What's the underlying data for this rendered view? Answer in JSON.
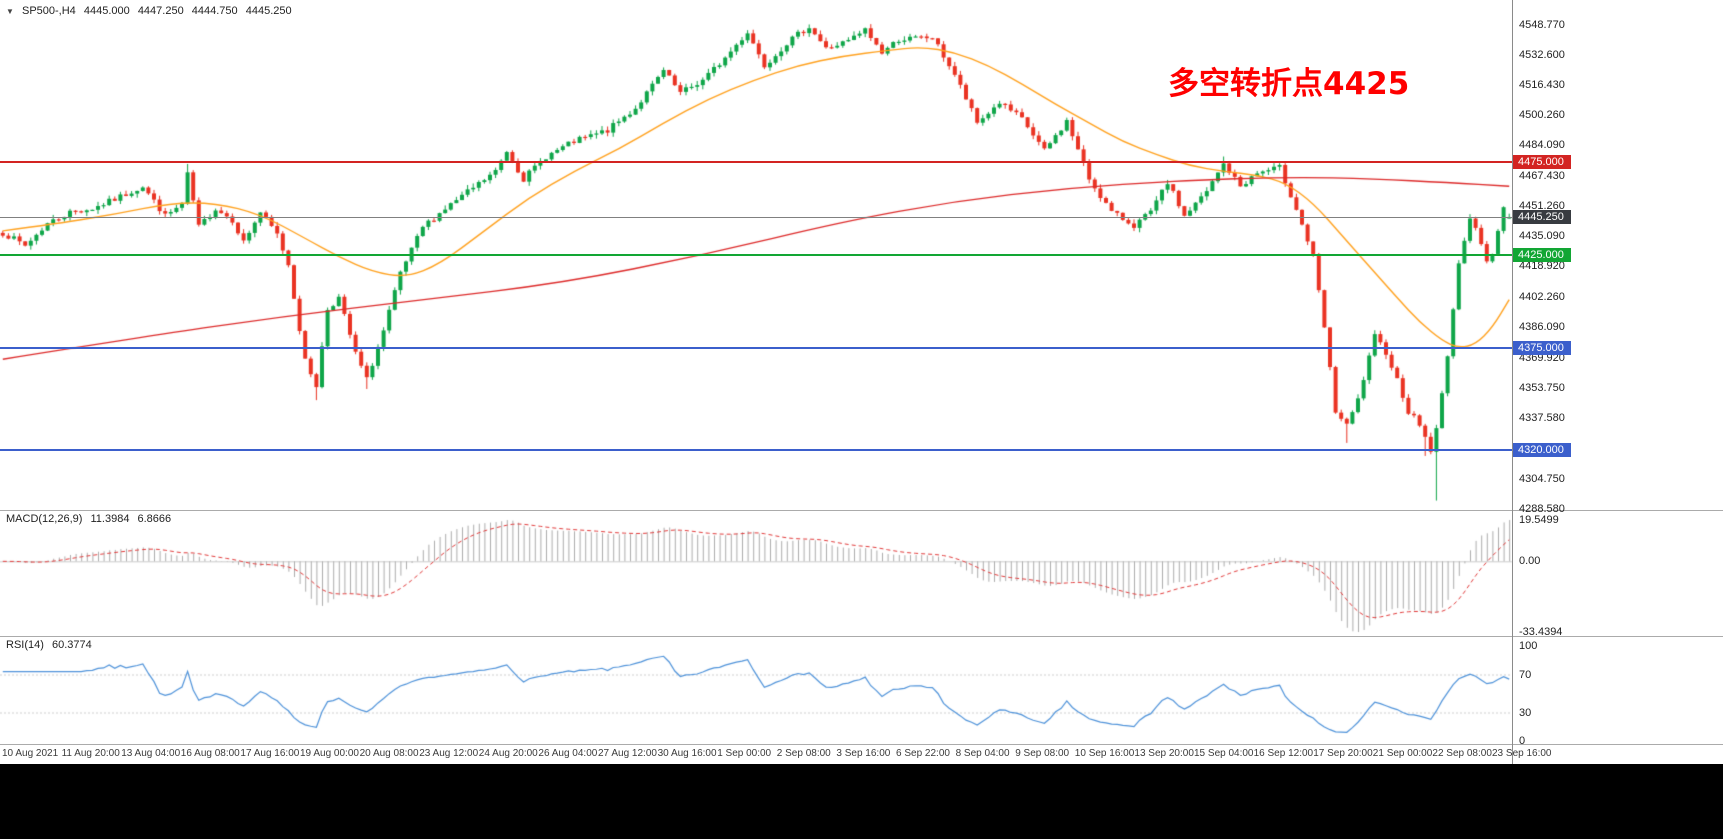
{
  "chart_header": {
    "expander_icon": "▼",
    "symbol_period": "SP500-,H4",
    "open": "4445.000",
    "high": "4447.250",
    "low": "4444.750",
    "close": "4445.250"
  },
  "annotation": {
    "text": "多空转折点4425",
    "color": "#FF0000"
  },
  "price_scale": {
    "labels": [
      "4548.770",
      "4532.600",
      "4516.430",
      "4500.260",
      "4484.090",
      "4467.430",
      "4451.260",
      "4435.090",
      "4418.920",
      "4402.260",
      "4386.090",
      "4369.920",
      "4353.750",
      "4337.580",
      "4304.750",
      "4288.580"
    ]
  },
  "current_price": {
    "label": "4445.250",
    "value": 4445.25,
    "badge_bg": "#383B41",
    "line_color": "#808080"
  },
  "levels": [
    {
      "label": "4475.000",
      "price": 4475,
      "color": "#D32422"
    },
    {
      "label": "4425.000",
      "price": 4425,
      "color": "#12A634"
    },
    {
      "label": "4375.000",
      "price": 4375,
      "color": "#3B5FCC"
    },
    {
      "label": "4320.000",
      "price": 4320,
      "color": "#3B5FCC"
    }
  ],
  "time_scale": {
    "labels": [
      "10 Aug 2021",
      "11 Aug 20:00",
      "13 Aug 04:00",
      "16 Aug 08:00",
      "17 Aug 16:00",
      "19 Aug 00:00",
      "20 Aug 08:00",
      "23 Aug 12:00",
      "24 Aug 20:00",
      "26 Aug 04:00",
      "27 Aug 12:00",
      "30 Aug 16:00",
      "1 Sep 00:00",
      "2 Sep 08:00",
      "3 Sep 16:00",
      "6 Sep 22:00",
      "8 Sep 04:00",
      "9 Sep 08:00",
      "10 Sep 16:00",
      "13 Sep 20:00",
      "15 Sep 04:00",
      "16 Sep 12:00",
      "17 Sep 20:00",
      "21 Sep 00:00",
      "22 Sep 08:00",
      "23 Sep 16:00"
    ]
  },
  "macd_panel": {
    "title": "MACD(12,26,9)",
    "value_main": "11.3984",
    "value_signal": "6.8666",
    "axis_labels": [
      "19.5499",
      "0.00",
      "-33.4394"
    ],
    "max": 19.5499,
    "min": -33.4394,
    "histogram_color": "#ADADAD",
    "signal_color": "#E23A3A",
    "zero_line_color": "#CCCCCC"
  },
  "rsi_panel": {
    "title": "RSI(14)",
    "value": "60.3774",
    "axis_labels": [
      "100",
      "70",
      "30",
      "0"
    ],
    "levels": [
      70,
      30
    ],
    "line_color": "#4F93DA",
    "level_color": "#CFCFCF"
  },
  "chart_data": {
    "type": "candlestick",
    "symbol": "SP500-",
    "timeframe": "H4",
    "bars": 270,
    "price_range": [
      4289,
      4560
    ],
    "up_color": "#0FA649",
    "down_color": "#EA3323",
    "last_bar": {
      "open": 4445.0,
      "high": 4447.25,
      "low": 4444.75,
      "close": 4445.25
    },
    "close_anchors": [
      [
        0,
        4437
      ],
      [
        4,
        4430
      ],
      [
        8,
        4442
      ],
      [
        12,
        4448
      ],
      [
        16,
        4450
      ],
      [
        20,
        4455
      ],
      [
        25,
        4462
      ],
      [
        29,
        4446
      ],
      [
        32,
        4452
      ],
      [
        33,
        4468
      ],
      [
        35,
        4440
      ],
      [
        38,
        4450
      ],
      [
        41,
        4444
      ],
      [
        43,
        4432
      ],
      [
        46,
        4448
      ],
      [
        49,
        4436
      ],
      [
        51,
        4420
      ],
      [
        54,
        4368
      ],
      [
        56,
        4355
      ],
      [
        58,
        4396
      ],
      [
        60,
        4402
      ],
      [
        63,
        4372
      ],
      [
        65,
        4358
      ],
      [
        68,
        4384
      ],
      [
        71,
        4415
      ],
      [
        75,
        4440
      ],
      [
        79,
        4450
      ],
      [
        84,
        4461
      ],
      [
        88,
        4470
      ],
      [
        90,
        4481
      ],
      [
        93,
        4466
      ],
      [
        97,
        4478
      ],
      [
        102,
        4486
      ],
      [
        108,
        4492
      ],
      [
        113,
        4504
      ],
      [
        118,
        4524
      ],
      [
        121,
        4512
      ],
      [
        125,
        4519
      ],
      [
        129,
        4531
      ],
      [
        133,
        4545
      ],
      [
        136,
        4527
      ],
      [
        140,
        4539
      ],
      [
        144,
        4548
      ],
      [
        147,
        4536
      ],
      [
        151,
        4540
      ],
      [
        154,
        4546
      ],
      [
        157,
        4534
      ],
      [
        160,
        4541
      ],
      [
        166,
        4542
      ],
      [
        170,
        4522
      ],
      [
        174,
        4496
      ],
      [
        178,
        4507
      ],
      [
        182,
        4498
      ],
      [
        186,
        4481
      ],
      [
        190,
        4497
      ],
      [
        194,
        4466
      ],
      [
        198,
        4448
      ],
      [
        202,
        4441
      ],
      [
        205,
        4448
      ],
      [
        208,
        4464
      ],
      [
        211,
        4446
      ],
      [
        215,
        4459
      ],
      [
        218,
        4474
      ],
      [
        221,
        4462
      ],
      [
        224,
        4469
      ],
      [
        228,
        4472
      ],
      [
        231,
        4450
      ],
      [
        234,
        4424
      ],
      [
        236,
        4386
      ],
      [
        238,
        4341
      ],
      [
        240,
        4333
      ],
      [
        242,
        4347
      ],
      [
        245,
        4381
      ],
      [
        247,
        4373
      ],
      [
        249,
        4358
      ],
      [
        251,
        4341
      ],
      [
        253,
        4334
      ],
      [
        255,
        4320
      ],
      [
        256,
        4331
      ],
      [
        257,
        4350
      ],
      [
        258,
        4372
      ],
      [
        259,
        4396
      ],
      [
        260,
        4419
      ],
      [
        261,
        4434
      ],
      [
        262,
        4446
      ],
      [
        263,
        4440
      ],
      [
        264,
        4430
      ],
      [
        265,
        4421
      ],
      [
        266,
        4426
      ],
      [
        267,
        4438
      ],
      [
        268,
        4452
      ],
      [
        269,
        4445.25
      ]
    ],
    "wick_overrides": [
      [
        33,
        "high",
        4474
      ],
      [
        56,
        "low",
        4347
      ],
      [
        65,
        "low",
        4353
      ],
      [
        144,
        "high",
        4549
      ],
      [
        218,
        "high",
        4478
      ],
      [
        240,
        "low",
        4324
      ],
      [
        254,
        "low",
        4317
      ],
      [
        256,
        "low",
        4293
      ]
    ],
    "ma_fast": {
      "color": "#FFA21F",
      "anchors": [
        [
          0,
          4438
        ],
        [
          10,
          4442
        ],
        [
          20,
          4447
        ],
        [
          30,
          4453
        ],
        [
          38,
          4453
        ],
        [
          46,
          4447
        ],
        [
          54,
          4434
        ],
        [
          60,
          4424
        ],
        [
          66,
          4416
        ],
        [
          72,
          4413
        ],
        [
          78,
          4420
        ],
        [
          86,
          4438
        ],
        [
          94,
          4456
        ],
        [
          102,
          4470
        ],
        [
          110,
          4482
        ],
        [
          118,
          4496
        ],
        [
          126,
          4509
        ],
        [
          134,
          4519
        ],
        [
          142,
          4527
        ],
        [
          150,
          4532
        ],
        [
          158,
          4535
        ],
        [
          164,
          4537
        ],
        [
          170,
          4534
        ],
        [
          176,
          4527
        ],
        [
          182,
          4517
        ],
        [
          188,
          4506
        ],
        [
          194,
          4496
        ],
        [
          200,
          4486
        ],
        [
          206,
          4479
        ],
        [
          212,
          4473
        ],
        [
          218,
          4470
        ],
        [
          224,
          4468
        ],
        [
          229,
          4464
        ],
        [
          234,
          4453
        ],
        [
          239,
          4436
        ],
        [
          244,
          4419
        ],
        [
          249,
          4402
        ],
        [
          253,
          4389
        ],
        [
          257,
          4379
        ],
        [
          260,
          4375
        ],
        [
          263,
          4377
        ],
        [
          266,
          4386
        ],
        [
          269,
          4401
        ]
      ]
    },
    "ma_slow": {
      "color": "#DD2A2A",
      "anchors": [
        [
          0,
          4369
        ],
        [
          25,
          4381
        ],
        [
          50,
          4392
        ],
        [
          75,
          4401
        ],
        [
          100,
          4410
        ],
        [
          125,
          4425
        ],
        [
          150,
          4443
        ],
        [
          170,
          4454
        ],
        [
          190,
          4461
        ],
        [
          210,
          4465
        ],
        [
          230,
          4467
        ],
        [
          245,
          4466
        ],
        [
          258,
          4464
        ],
        [
          269,
          4462
        ]
      ]
    },
    "indicators": {
      "macd": {
        "fast": 12,
        "slow": 26,
        "signal": 9
      },
      "rsi": {
        "period": 14
      }
    }
  }
}
